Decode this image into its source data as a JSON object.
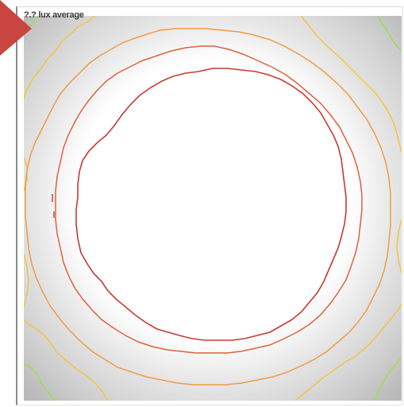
{
  "overlay": {
    "label": "?.? lux average"
  },
  "heatmap": {
    "type": "heatmap",
    "contour_colors": {
      "inner": "#c53b32",
      "second": "#e0613e",
      "third": "#f09b46",
      "outer": "#f2c541",
      "corner": "#9fdd55"
    },
    "background_colors": {
      "center": "#ffffff",
      "edge": "#bcbcbc"
    }
  },
  "marker": {
    "icon": "corner-triangle-icon",
    "color": "#c8463f"
  }
}
